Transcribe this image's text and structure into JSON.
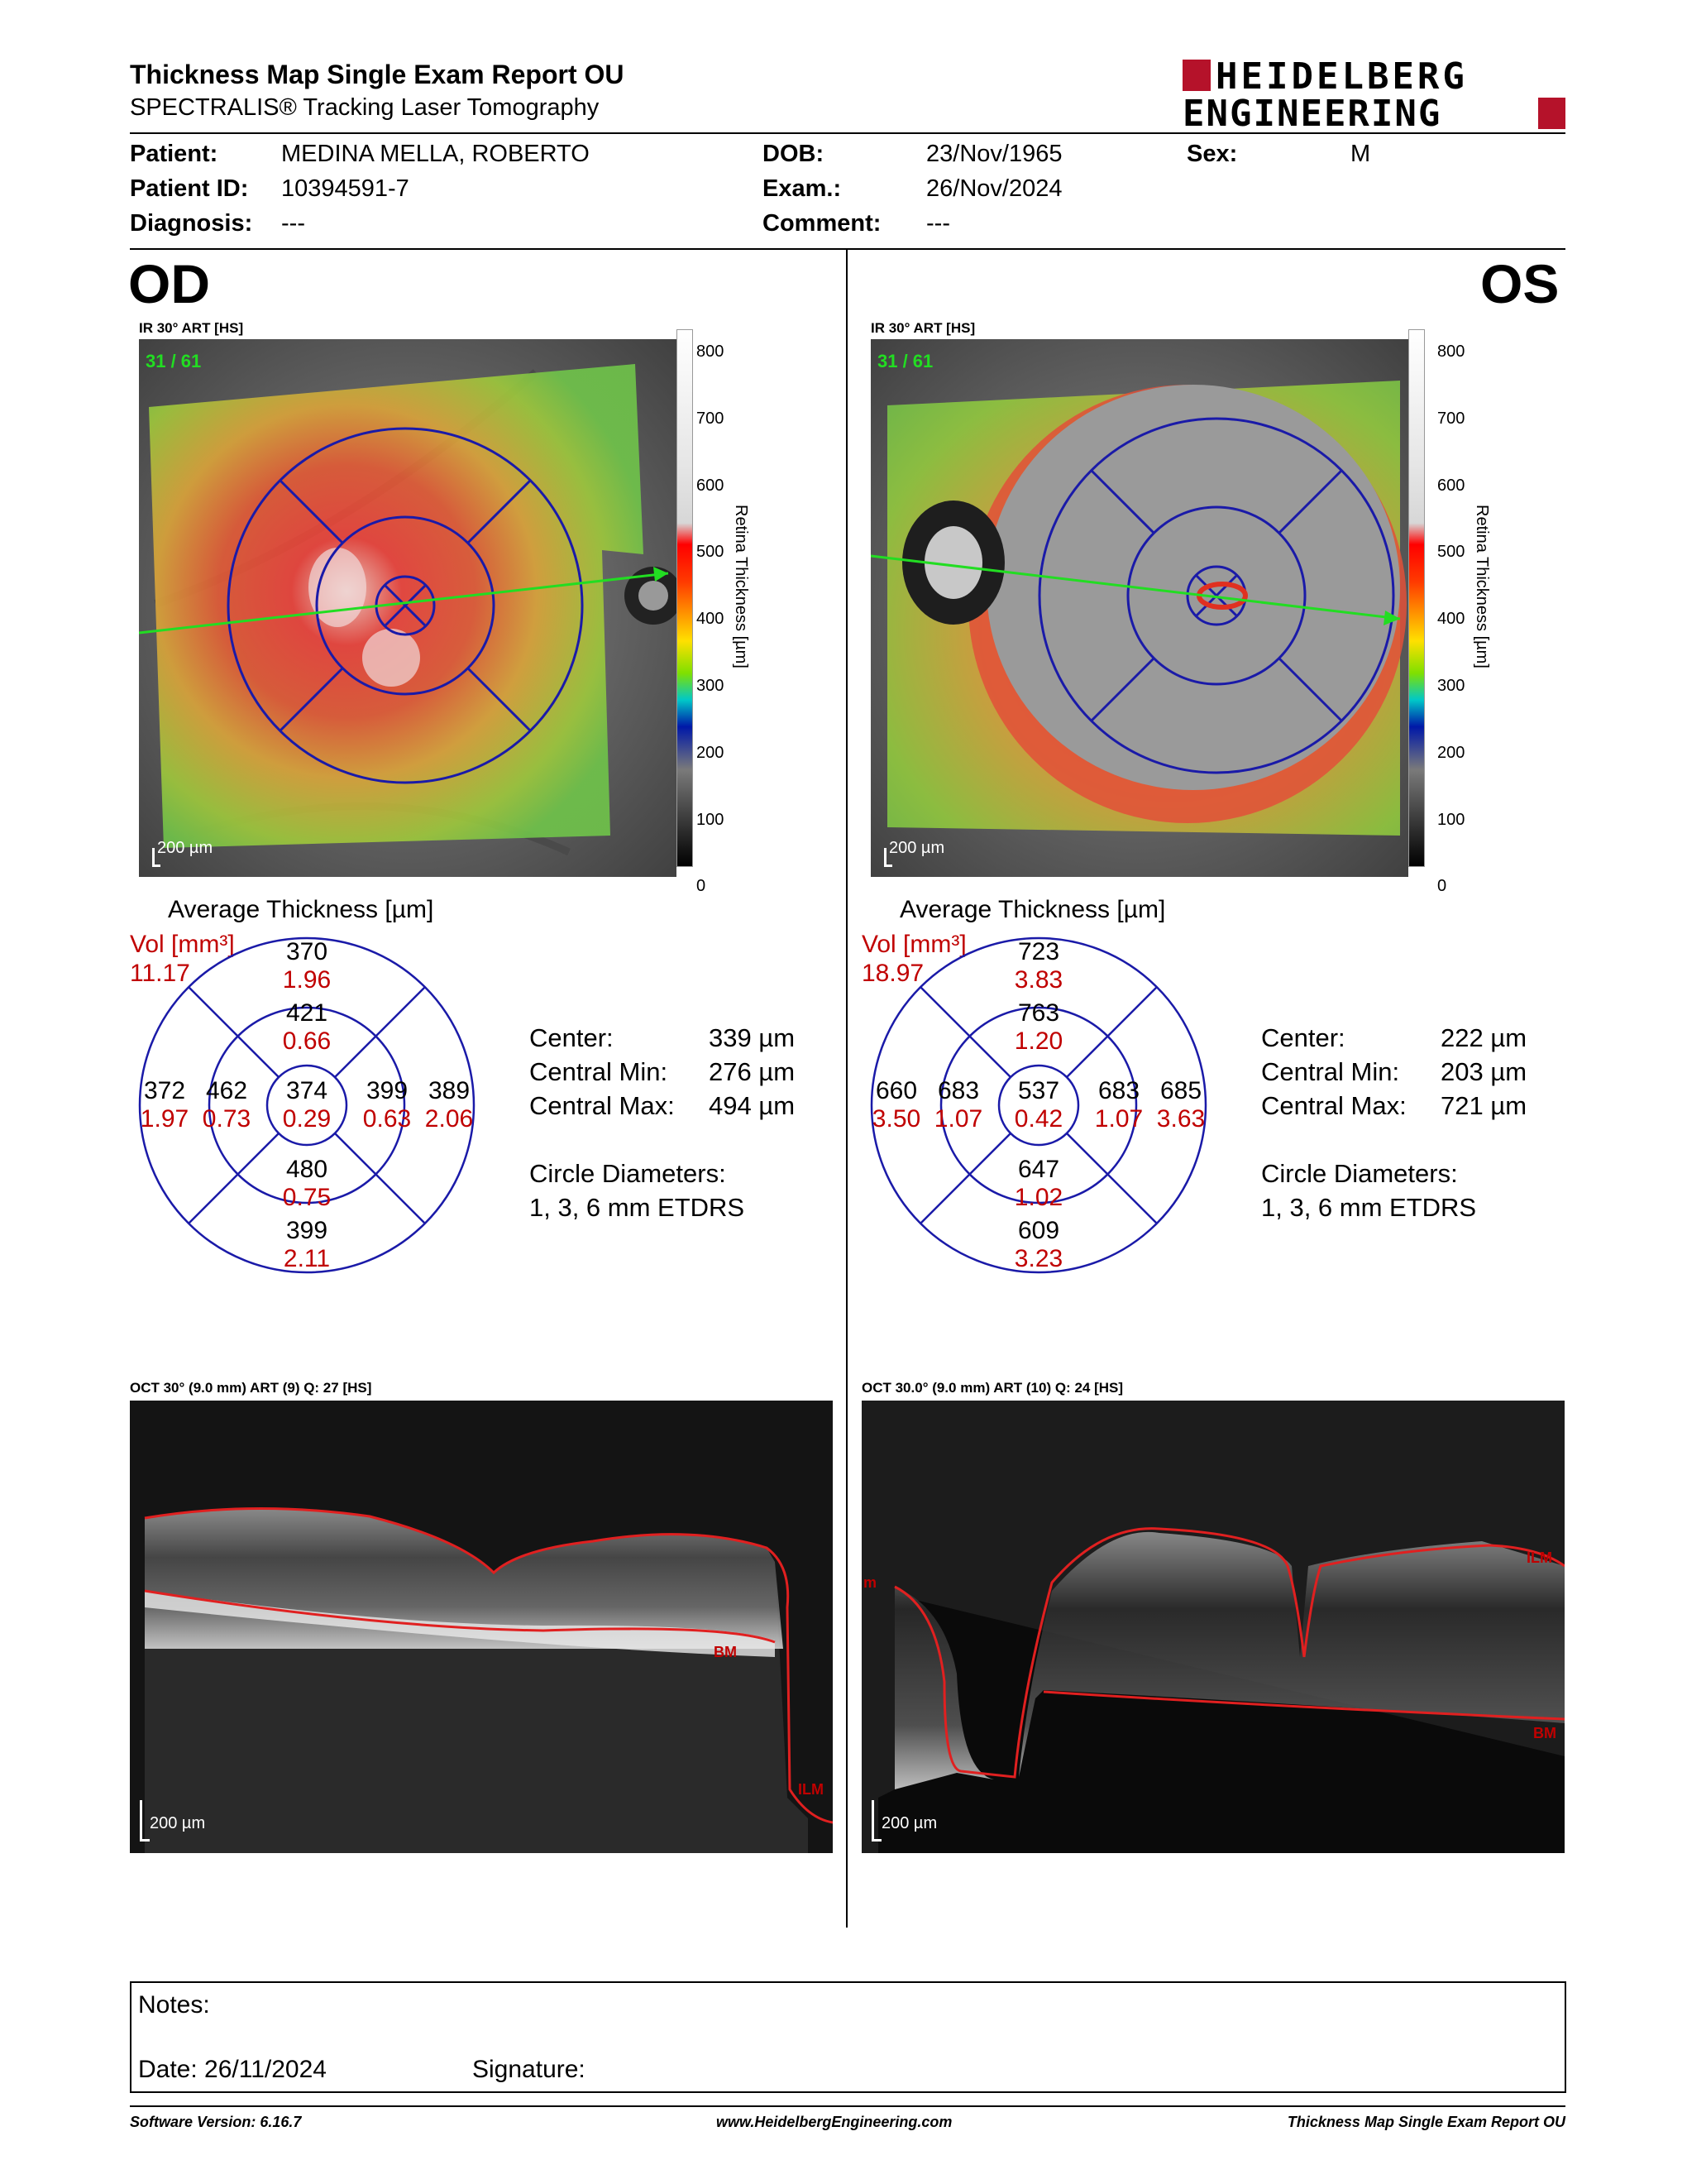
{
  "header": {
    "title": "Thickness Map Single Exam Report OU",
    "subtitle": "SPECTRALIS® Tracking Laser Tomography",
    "logo_line1": "HEIDELBERG",
    "logo_line2": "ENGINEERING"
  },
  "patient": {
    "patient_label": "Patient:",
    "patient_value": "MEDINA MELLA, ROBERTO",
    "id_label": "Patient ID:",
    "id_value": "10394591-7",
    "diagnosis_label": "Diagnosis:",
    "diagnosis_value": "---",
    "dob_label": "DOB:",
    "dob_value": "23/Nov/1965",
    "exam_label": "Exam.:",
    "exam_value": "26/Nov/2024",
    "comment_label": "Comment:",
    "comment_value": "---",
    "sex_label": "Sex:",
    "sex_value": "M"
  },
  "od": {
    "eye": "OD",
    "ir_label": "IR 30° ART [HS]",
    "frame_counter": "31 / 61",
    "scale": "200 µm",
    "avg_title": "Average Thickness [µm]",
    "vol_label": "Vol [mm³]",
    "vol_total": "11.17",
    "sectors": {
      "outer_sup": [
        "370",
        "1.96"
      ],
      "inner_sup": [
        "421",
        "0.66"
      ],
      "outer_temp": [
        "372",
        "1.97"
      ],
      "inner_temp": [
        "462",
        "0.73"
      ],
      "center": [
        "374",
        "0.29"
      ],
      "inner_nas": [
        "399",
        "0.63"
      ],
      "outer_nas": [
        "389",
        "2.06"
      ],
      "inner_inf": [
        "480",
        "0.75"
      ],
      "outer_inf": [
        "399",
        "2.11"
      ]
    },
    "stats": {
      "center_label": "Center:",
      "center_value": "339 µm",
      "min_label": "Central Min:",
      "min_value": "276 µm",
      "max_label": "Central Max:",
      "max_value": "494 µm",
      "circle_label": "Circle Diameters:",
      "circle_value": "1, 3, 6 mm ETDRS"
    },
    "oct_label": "OCT 30° (9.0 mm) ART (9) Q: 27 [HS]",
    "oct_scale": "200 µm",
    "tag_bm": "BM",
    "tag_ilm": "ILM"
  },
  "os": {
    "eye": "OS",
    "ir_label": "IR 30° ART [HS]",
    "frame_counter": "31 / 61",
    "scale": "200 µm",
    "avg_title": "Average Thickness [µm]",
    "vol_label": "Vol [mm³]",
    "vol_total": "18.97",
    "sectors": {
      "outer_sup": [
        "723",
        "3.83"
      ],
      "inner_sup": [
        "763",
        "1.20"
      ],
      "outer_temp": [
        "660",
        "3.50"
      ],
      "inner_temp": [
        "683",
        "1.07"
      ],
      "center": [
        "537",
        "0.42"
      ],
      "inner_nas": [
        "683",
        "1.07"
      ],
      "outer_nas": [
        "685",
        "3.63"
      ],
      "inner_inf": [
        "647",
        "1.02"
      ],
      "outer_inf": [
        "609",
        "3.23"
      ]
    },
    "stats": {
      "center_label": "Center:",
      "center_value": "222 µm",
      "min_label": "Central Min:",
      "min_value": "203 µm",
      "max_label": "Central Max:",
      "max_value": "721 µm",
      "circle_label": "Circle Diameters:",
      "circle_value": "1, 3, 6 mm ETDRS"
    },
    "oct_label": "OCT 30.0° (9.0 mm) ART (10) Q: 24 [HS]",
    "oct_scale": "200 µm",
    "tag_bm": "BM",
    "tag_ilm": "ILM",
    "tag_m": "m"
  },
  "colorbar": {
    "ticks": [
      "800",
      "700",
      "600",
      "500",
      "400",
      "300",
      "200",
      "100",
      "0"
    ],
    "axis_label": "Retina  Thickness [µm]"
  },
  "notes": {
    "notes_label": "Notes:",
    "date_label": "Date: 26/11/2024",
    "signature_label": "Signature:"
  },
  "footer": {
    "software": "Software Version: 6.16.7",
    "url": "www.HeidelbergEngineering.com",
    "report": "Thickness Map Single Exam Report OU"
  },
  "colors": {
    "etdrs_blue": "#1a1aa8",
    "volume_red": "#c00000",
    "brand_red": "#b5122a",
    "scan_line_green": "#22dd22"
  }
}
